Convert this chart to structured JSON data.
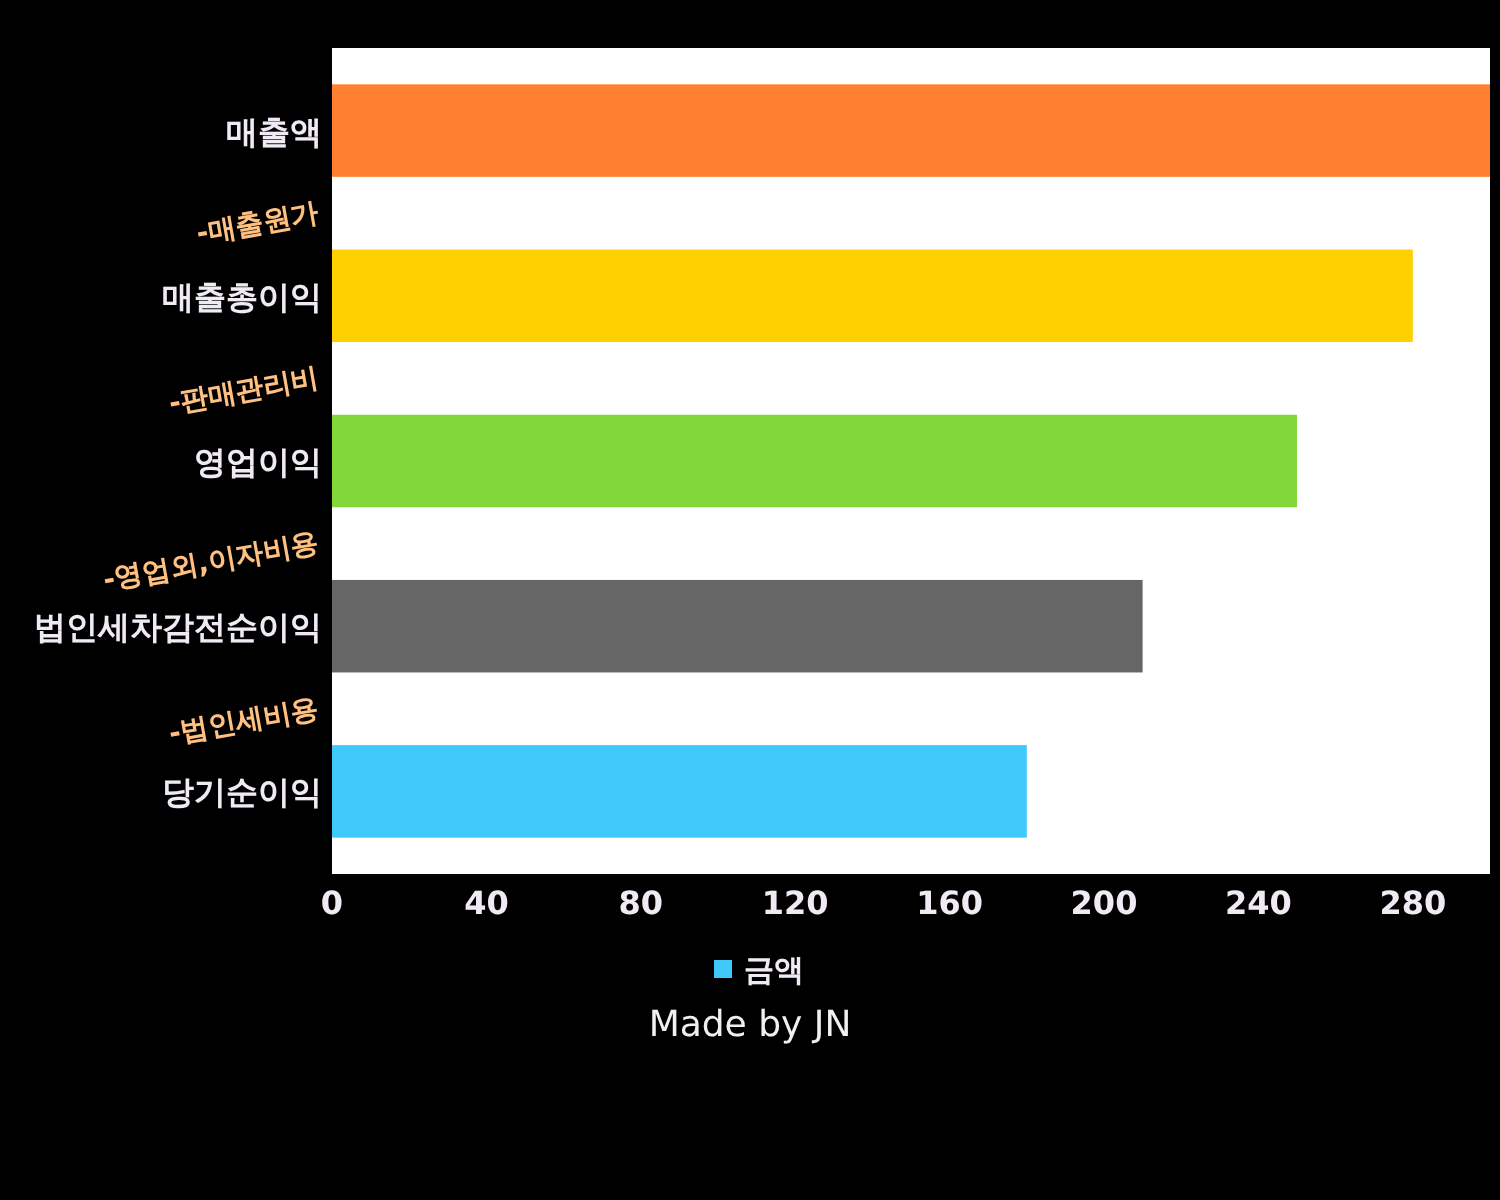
{
  "chart_data": {
    "type": "bar",
    "orientation": "horizontal",
    "categories": [
      "매출액",
      "매출총이익",
      "영업이익",
      "법인세차감전순이익",
      "당기순이익"
    ],
    "series": [
      {
        "name": "금액",
        "color": "#40c8fa",
        "colors": [
          "#ff8030",
          "#ffd000",
          "#82d838",
          "#666666",
          "#40c8fa"
        ],
        "values": [
          300,
          280,
          250,
          210,
          180
        ]
      }
    ],
    "xlim": [
      0,
      300
    ],
    "xticks": [
      0,
      40,
      80,
      120,
      160,
      200,
      240,
      280
    ],
    "grid": false,
    "legend": "bottom",
    "annotations": [
      "-매출원가",
      "-판매관리비",
      "-영업외,이자비용",
      "-법인세비용",
      "Made by JN"
    ]
  }
}
